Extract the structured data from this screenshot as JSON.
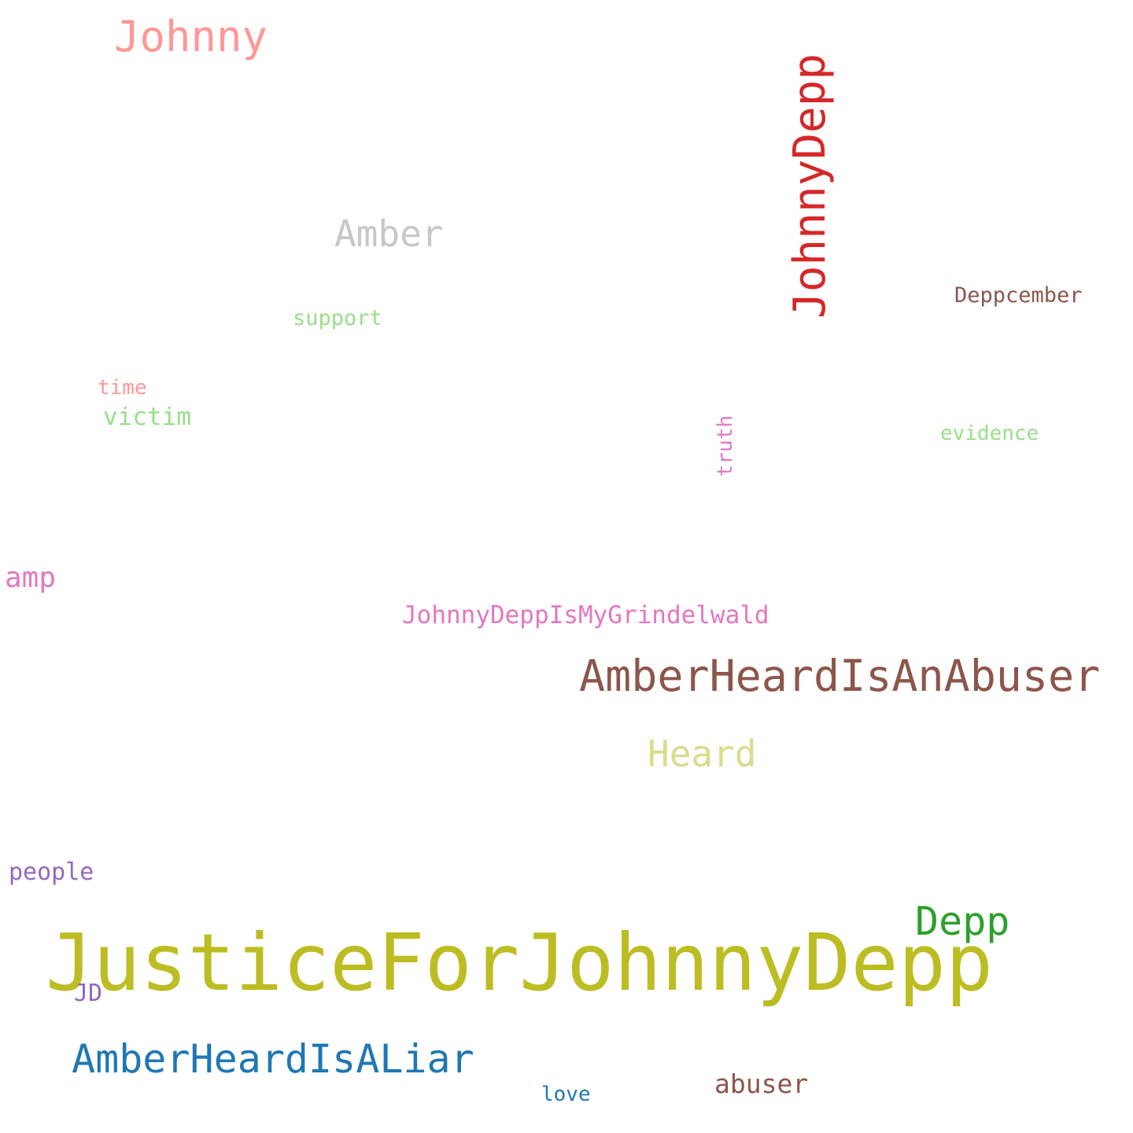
{
  "words": {
    "johnny": {
      "text": "Johnny",
      "color": "#ff9896"
    },
    "johnnydepp": {
      "text": "JohnnyDepp",
      "color": "#d62728"
    },
    "amber": {
      "text": "Amber",
      "color": "#c7c7c7"
    },
    "deppcember": {
      "text": "Deppcember",
      "color": "#8c564b"
    },
    "support": {
      "text": "support",
      "color": "#98df8a"
    },
    "time": {
      "text": "time",
      "color": "#ff9896"
    },
    "victim": {
      "text": "victim",
      "color": "#98df8a"
    },
    "truth": {
      "text": "truth",
      "color": "#e377c2"
    },
    "evidence": {
      "text": "evidence",
      "color": "#98df8a"
    },
    "amp": {
      "text": "amp",
      "color": "#e377c2"
    },
    "grindelwald": {
      "text": "JohnnyDeppIsMyGrindelwald",
      "color": "#e377c2"
    },
    "abuser_hash": {
      "text": "AmberHeardIsAnAbuser",
      "color": "#8c564b"
    },
    "heard": {
      "text": "Heard",
      "color": "#dbdb8d"
    },
    "people": {
      "text": "people",
      "color": "#9467bd"
    },
    "depp": {
      "text": "Depp",
      "color": "#2ca02c"
    },
    "justice": {
      "text": "JusticeForJohnnyDepp",
      "color": "#bcbd22"
    },
    "jd": {
      "text": "JD",
      "color": "#9467bd"
    },
    "liar": {
      "text": "AmberHeardIsALiar",
      "color": "#1f77b4"
    },
    "abuser": {
      "text": "abuser",
      "color": "#8c564b"
    },
    "love": {
      "text": "love",
      "color": "#1f77b4"
    }
  }
}
